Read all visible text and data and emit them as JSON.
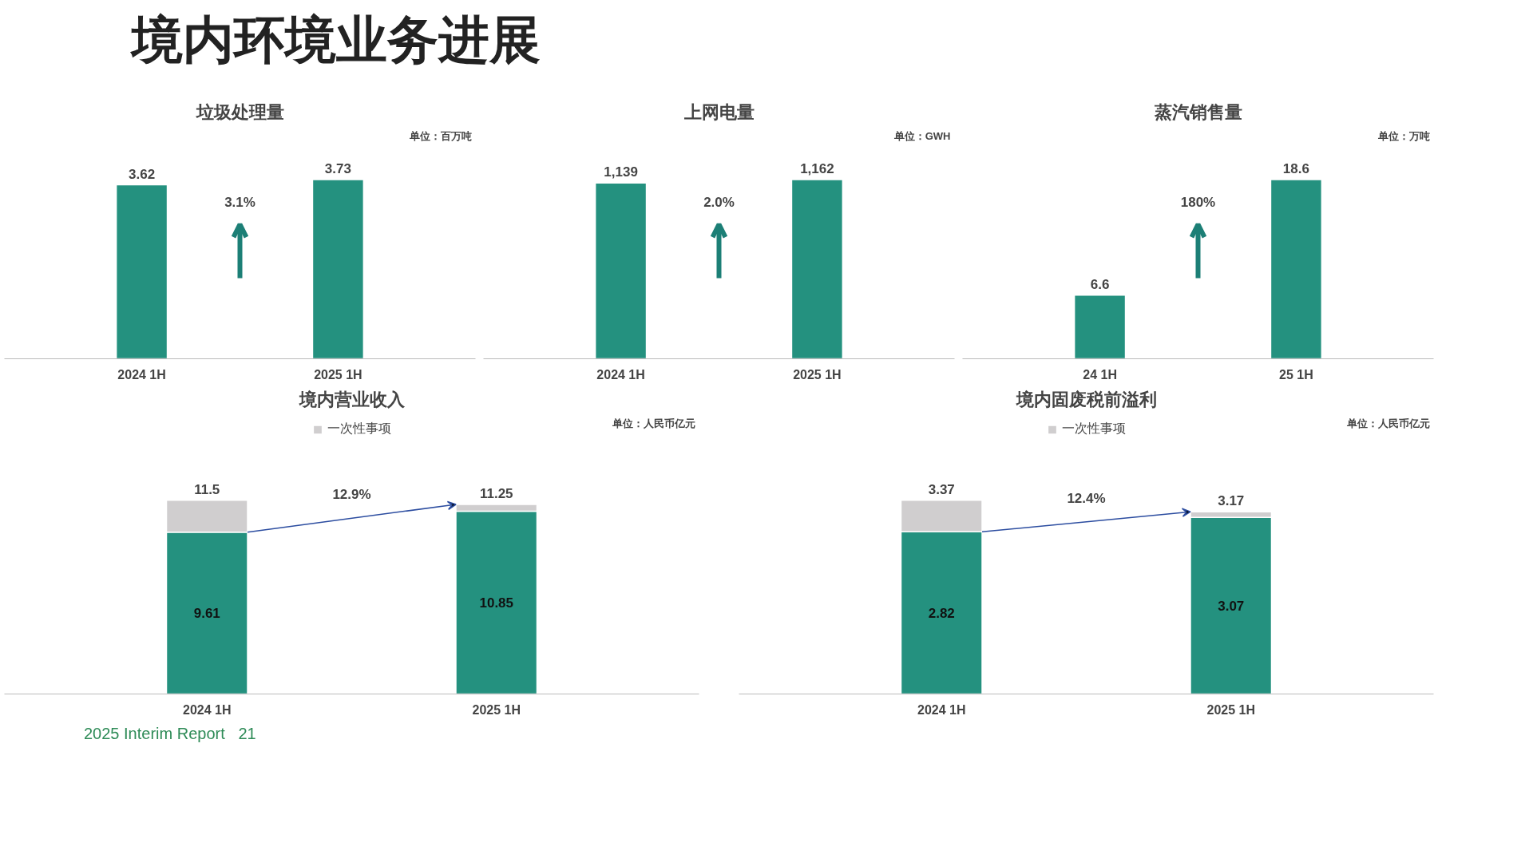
{
  "chart_data": [
    {
      "type": "other",
      "title": "境内环境业务进展",
      "annotations": [
        "2025 Interim Report",
        "21"
      ]
    },
    {
      "type": "bar",
      "title": "垃圾处理量",
      "categories": [
        "2024 1H",
        "2025 1H"
      ],
      "values": [
        3.62,
        3.73
      ],
      "color": "#24917f",
      "data_labels": true,
      "tick_labels": "x",
      "annotations": [
        "单位：百万吨",
        "3.1%"
      ]
    },
    {
      "type": "bar",
      "title": "上网电量",
      "categories": [
        "2024 1H",
        "2025 1H"
      ],
      "values": [
        1139,
        1162
      ],
      "value_labels": [
        "1,139",
        "1,162"
      ],
      "color": "#24917f",
      "tick_labels": "x",
      "annotations": [
        "单位：GWH",
        "2.0%"
      ]
    },
    {
      "type": "bar",
      "title": "蒸汽销售量",
      "categories": [
        "24 1H",
        "25 1H"
      ],
      "values": [
        6.6,
        18.6
      ],
      "color": "#24917f",
      "data_labels": true,
      "tick_labels": "x",
      "annotations": [
        "单位：万吨",
        "180%"
      ]
    },
    {
      "type": "bar",
      "title": "境内营业收入",
      "categories": [
        "2024 1H",
        "2025 1H"
      ],
      "stacked": true,
      "tick_labels": "x",
      "legend": "top",
      "series": [
        {
          "color": "#24917f",
          "values": [
            9.61,
            10.85
          ],
          "value_labels": [
            "9.61",
            "10.85"
          ]
        },
        {
          "name": "一次性事项",
          "color": "#d0cecf",
          "values": [
            1.89,
            0.4
          ]
        }
      ],
      "totals": [
        "11.5",
        "11.25"
      ],
      "annotations": [
        "单位：人民币亿元",
        "12.9%"
      ]
    },
    {
      "type": "bar",
      "title": "境内固废税前溢利",
      "categories": [
        "2024 1H",
        "2025 1H"
      ],
      "stacked": true,
      "tick_labels": "x",
      "legend": "top",
      "series": [
        {
          "color": "#24917f",
          "values": [
            2.82,
            3.07
          ],
          "value_labels": [
            "2.82",
            "3.07"
          ]
        },
        {
          "name": "一次性事项",
          "color": "#d0cecf",
          "values": [
            0.55,
            0.1
          ]
        }
      ],
      "totals": [
        "3.37",
        "3.17"
      ],
      "annotations": [
        "单位：人民币亿元",
        "12.4%"
      ]
    }
  ]
}
